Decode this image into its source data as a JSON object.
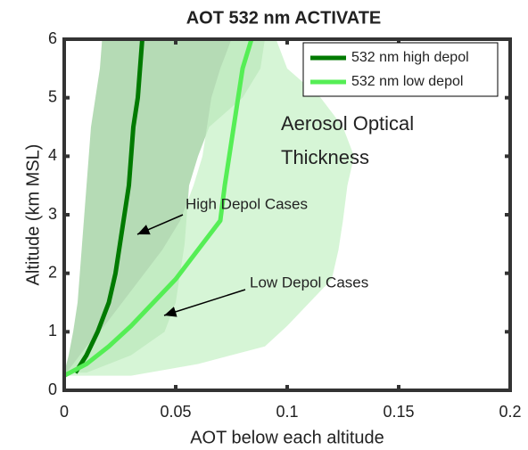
{
  "chart_data": {
    "type": "profile",
    "title": "AOT 532 nm ACTIVATE",
    "x_label": "AOT below each altitude",
    "y_label": "Altitude (km MSL)",
    "xlim": [
      0,
      0.2
    ],
    "xticks": [
      0,
      0.05,
      0.1,
      0.15,
      0.2
    ],
    "ylim": [
      0,
      6
    ],
    "yticks": [
      0,
      1,
      2,
      3,
      4,
      5,
      6
    ],
    "legend": "upper right",
    "annotations": [
      "Aerosol Optical",
      "Thickness",
      "High Depol Cases",
      "Low Depol Cases"
    ],
    "series": [
      {
        "name": "532 nm high depol",
        "color": "#007a00",
        "band_color": "#9ccf9c",
        "y": [
          0.3,
          0.6,
          1.0,
          1.5,
          2.0,
          2.5,
          3.0,
          3.5,
          4.0,
          4.5,
          5.0,
          5.5,
          6.0
        ],
        "values": [
          0.005,
          0.01,
          0.015,
          0.02,
          0.023,
          0.025,
          0.027,
          0.029,
          0.03,
          0.031,
          0.033,
          0.034,
          0.035
        ],
        "lower": [
          0.0,
          0.002,
          0.004,
          0.006,
          0.007,
          0.008,
          0.009,
          0.01,
          0.011,
          0.012,
          0.014,
          0.016,
          0.017
        ],
        "upper": [
          0.01,
          0.03,
          0.045,
          0.05,
          0.052,
          0.054,
          0.055,
          0.056,
          0.06,
          0.065,
          0.08,
          0.088,
          0.09
        ]
      },
      {
        "name": "532 nm low depol",
        "color": "#55ee55",
        "band_color": "#c8f2c8",
        "y": [
          0.25,
          0.45,
          0.75,
          1.1,
          1.5,
          1.9,
          2.4,
          2.9,
          3.5,
          4.0,
          4.5,
          5.0,
          5.5,
          6.0
        ],
        "values": [
          0,
          0.01,
          0.02,
          0.03,
          0.04,
          0.05,
          0.06,
          0.07,
          0.072,
          0.074,
          0.076,
          0.078,
          0.08,
          0.084
        ],
        "lower": [
          0.0,
          0.004,
          0.01,
          0.018,
          0.026,
          0.034,
          0.044,
          0.052,
          0.058,
          0.062,
          0.064,
          0.066,
          0.07,
          0.075
        ],
        "upper": [
          0.03,
          0.06,
          0.09,
          0.1,
          0.11,
          0.12,
          0.123,
          0.125,
          0.127,
          0.13,
          0.125,
          0.115,
          0.1,
          0.095
        ]
      }
    ]
  }
}
